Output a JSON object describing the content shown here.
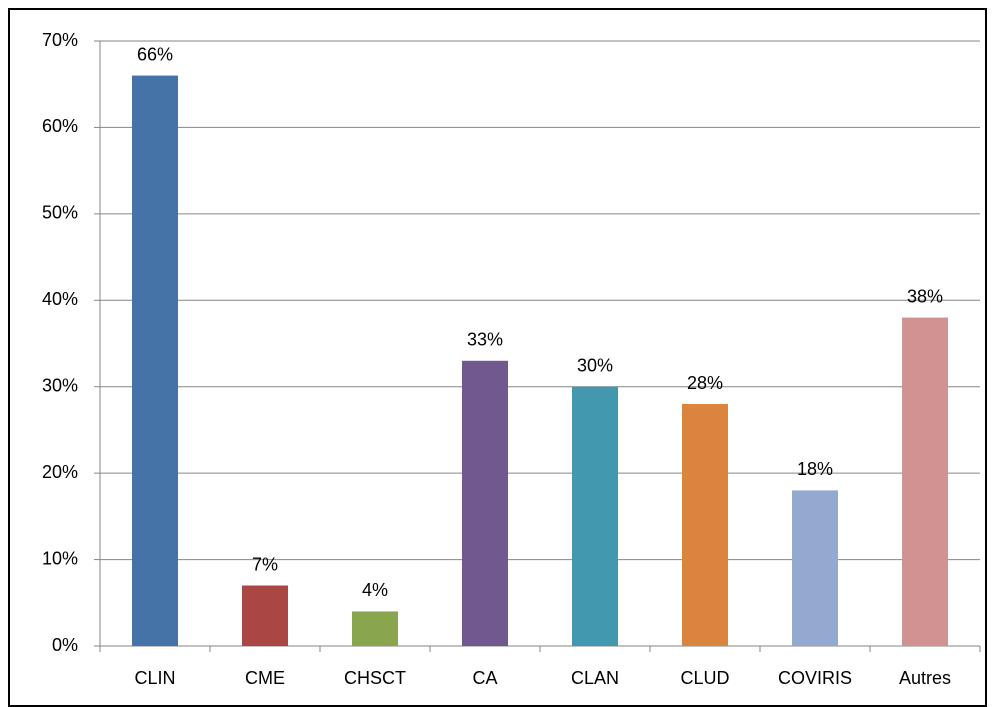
{
  "chart_data": {
    "type": "bar",
    "categories": [
      "CLIN",
      "CME",
      "CHSCT",
      "CA",
      "CLAN",
      "CLUD",
      "COVIRIS",
      "Autres"
    ],
    "values": [
      66,
      7,
      4,
      33,
      30,
      28,
      18,
      38
    ],
    "value_labels": [
      "66%",
      "7%",
      "4%",
      "33%",
      "30%",
      "28%",
      "18%",
      "38%"
    ],
    "colors": [
      "#4572a7",
      "#aa4643",
      "#89a54e",
      "#71588f",
      "#4198af",
      "#db843d",
      "#93a9cf",
      "#d19392"
    ],
    "ylim": [
      0,
      70
    ],
    "yticks": [
      {
        "value": 0,
        "label": "0%"
      },
      {
        "value": 10,
        "label": "10%"
      },
      {
        "value": 20,
        "label": "20%"
      },
      {
        "value": 30,
        "label": "30%"
      },
      {
        "value": 40,
        "label": "40%"
      },
      {
        "value": 50,
        "label": "50%"
      },
      {
        "value": 60,
        "label": "60%"
      },
      {
        "value": 70,
        "label": "70%"
      }
    ],
    "grid": true
  }
}
